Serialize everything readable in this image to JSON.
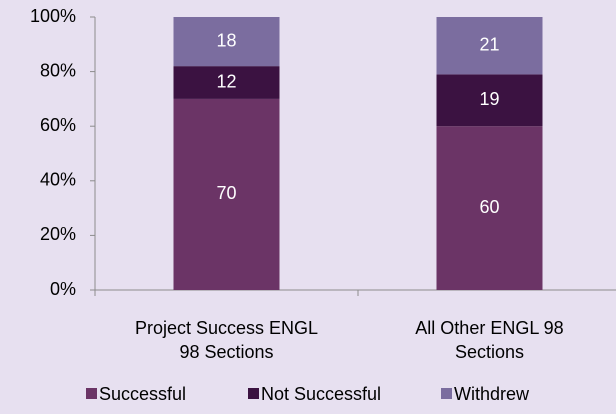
{
  "chart_data": {
    "type": "stacked_bar",
    "categories": [
      "Project Success ENGL 98 Sections",
      "All Other ENGL 98 Sections"
    ],
    "series": [
      {
        "name": "Successful",
        "color": "#6b3466",
        "values": [
          70,
          60
        ]
      },
      {
        "name": "Not Successful",
        "color": "#3b1241",
        "values": [
          12,
          19
        ]
      },
      {
        "name": "Withdrew",
        "color": "#7b6d9f",
        "values": [
          18,
          21
        ]
      }
    ],
    "ylim": [
      0,
      100
    ],
    "yticks": [
      {
        "value": 0,
        "label": "0%"
      },
      {
        "value": 20,
        "label": "20%"
      },
      {
        "value": 40,
        "label": "40%"
      },
      {
        "value": 60,
        "label": "60%"
      },
      {
        "value": 80,
        "label": "80%"
      },
      {
        "value": 100,
        "label": "100%"
      }
    ],
    "legend": "bottom"
  }
}
